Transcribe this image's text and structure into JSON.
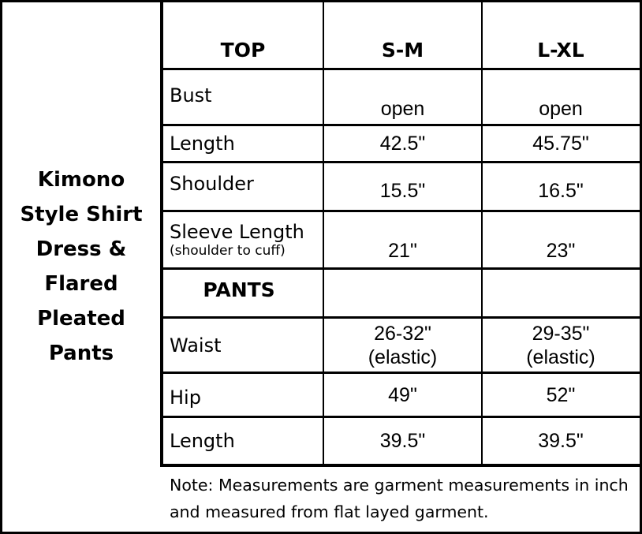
{
  "product_title": "Kimono Style Shirt Dress & Flared Pleated Pants",
  "header": {
    "section": "TOP",
    "sizes": [
      "S-M",
      "L-XL"
    ]
  },
  "top_rows": [
    {
      "label": "Bust",
      "sub": "",
      "sm": "open",
      "lxl": "open"
    },
    {
      "label": "Length",
      "sub": "",
      "sm": "42.5\"",
      "lxl": "45.75\""
    },
    {
      "label": "Shoulder",
      "sub": "",
      "sm": "15.5\"",
      "lxl": "16.5\""
    },
    {
      "label": "Sleeve Length",
      "sub": "(shoulder to cuff)",
      "sm": "21\"",
      "lxl": "23\""
    }
  ],
  "pants_header": "PANTS",
  "pants_rows": [
    {
      "label": "Waist",
      "sm": "26-32\"",
      "sm2": "(elastic)",
      "lxl": "29-35\"",
      "lxl2": "(elastic)"
    },
    {
      "label": "Hip",
      "sm": "49\"",
      "lxl": "52\""
    },
    {
      "label": "Length",
      "sm": "39.5\"",
      "lxl": "39.5\""
    }
  ],
  "note": "Note: Measurements are garment measurements in inch and measured from flat layed garment."
}
